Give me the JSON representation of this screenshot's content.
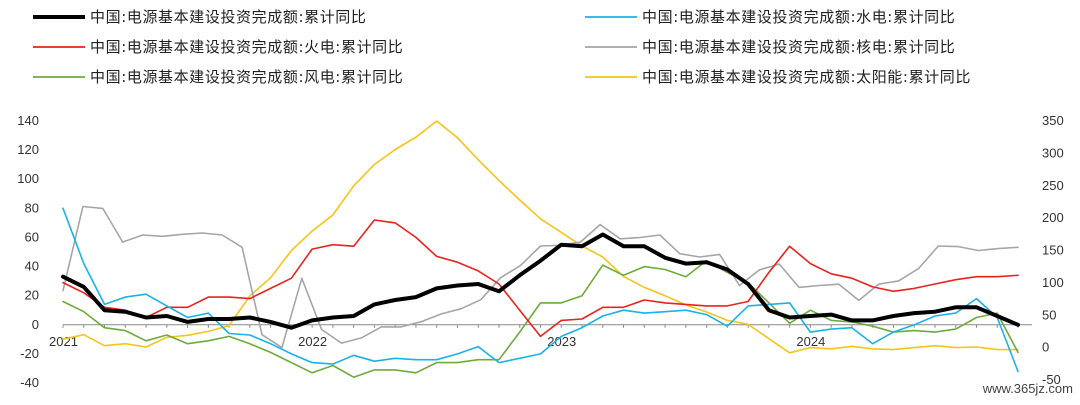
{
  "chart_data": {
    "type": "line",
    "legend": [
      {
        "key": "total",
        "label": "中国:电源基本建设投资完成额:累计同比",
        "color": "#000000"
      },
      {
        "key": "hydro",
        "label": "中国:电源基本建设投资完成额:水电:累计同比",
        "color": "#1ab2e8"
      },
      {
        "key": "thermal",
        "label": "中国:电源基本建设投资完成额:火电:累计同比",
        "color": "#e8231d"
      },
      {
        "key": "nuclear",
        "label": "中国:电源基本建设投资完成额:核电:累计同比",
        "color": "#a6a6a6"
      },
      {
        "key": "wind",
        "label": "中国:电源基本建设投资完成额:风电:累计同比",
        "color": "#6fab3c"
      },
      {
        "key": "solar",
        "label": "中国:电源基本建设投资完成额:太阳能:累计同比",
        "color": "#f5c518"
      }
    ],
    "year_labels": [
      "2021",
      "2022",
      "2023",
      "2024"
    ],
    "ylim_left": [
      -40,
      140
    ],
    "yticks_left": [
      "140",
      "120",
      "100",
      "80",
      "60",
      "40",
      "20",
      "0",
      "-20",
      "-40"
    ],
    "ylim_right": [
      -50,
      350
    ],
    "yticks_right": [
      "350",
      "300",
      "250",
      "200",
      "150",
      "100",
      "50",
      "0",
      "-50"
    ],
    "grid": false,
    "legend_position": "top",
    "series": [
      {
        "key": "total",
        "axis": "left",
        "values": [
          33,
          26,
          10,
          9,
          5,
          6,
          2,
          4,
          4,
          5,
          2,
          -2,
          3,
          5,
          6,
          14,
          17,
          19,
          25,
          27,
          28,
          23,
          34,
          44,
          55,
          54,
          62,
          54,
          54,
          46,
          42,
          43,
          38,
          28,
          10,
          5,
          6,
          7,
          3,
          3,
          6,
          8,
          9,
          12,
          12,
          6,
          0
        ]
      },
      {
        "key": "hydro",
        "axis": "left",
        "values": [
          80,
          42,
          14,
          19,
          21,
          13,
          5,
          8,
          -6,
          -7,
          -13,
          -20,
          -26,
          -27,
          -21,
          -25,
          -23,
          -24,
          -24,
          -20,
          -15,
          -26,
          -23,
          -20,
          -8,
          -2,
          6,
          10,
          8,
          9,
          10,
          7,
          -1,
          13,
          14,
          15,
          -5,
          -3,
          -2,
          -13,
          -5,
          0,
          6,
          8,
          18,
          5,
          -32
        ]
      },
      {
        "key": "thermal",
        "axis": "left",
        "values": [
          29,
          22,
          12,
          10,
          5,
          12,
          12,
          19,
          19,
          18,
          25,
          32,
          52,
          55,
          54,
          72,
          70,
          60,
          47,
          43,
          37,
          28,
          10,
          -8,
          3,
          4,
          12,
          12,
          17,
          15,
          14,
          13,
          13,
          16,
          36,
          54,
          42,
          35,
          32,
          26,
          23,
          25,
          28,
          31,
          33,
          33,
          34
        ]
      },
      {
        "key": "nuclear",
        "axis": "right",
        "values": [
          88,
          218,
          215,
          163,
          174,
          172,
          175,
          177,
          174,
          155,
          20,
          0,
          107,
          28,
          7,
          15,
          32,
          32,
          40,
          52,
          60,
          74,
          108,
          127,
          157,
          158,
          163,
          190,
          168,
          170,
          174,
          145,
          140,
          144,
          96,
          120,
          129,
          93,
          96,
          98,
          73,
          98,
          103,
          122,
          157,
          156,
          150,
          153,
          155
        ]
      },
      {
        "key": "wind",
        "axis": "left",
        "values": [
          16,
          9,
          -2,
          -4,
          -11,
          -7,
          -13,
          -11,
          -8,
          -13,
          -19,
          -26,
          -33,
          -28,
          -36,
          -31,
          -31,
          -33,
          -26,
          -26,
          -24,
          -24,
          -5,
          15,
          15,
          20,
          41,
          34,
          40,
          38,
          33,
          44,
          36,
          29,
          15,
          1,
          10,
          3,
          2,
          -1,
          -5,
          -4,
          -5,
          -3,
          5,
          8,
          -19
        ]
      },
      {
        "key": "solar",
        "axis": "right",
        "values": [
          13,
          20,
          3,
          6,
          1,
          16,
          19,
          25,
          34,
          80,
          108,
          150,
          180,
          205,
          250,
          283,
          306,
          325,
          350,
          324,
          290,
          258,
          228,
          199,
          178,
          157,
          140,
          110,
          93,
          80,
          66,
          55,
          42,
          36,
          14,
          -8,
          0,
          -2,
          2,
          -2,
          -3,
          0,
          3,
          0,
          1,
          -3,
          -3
        ]
      }
    ]
  },
  "watermark": "www.365jz.com"
}
